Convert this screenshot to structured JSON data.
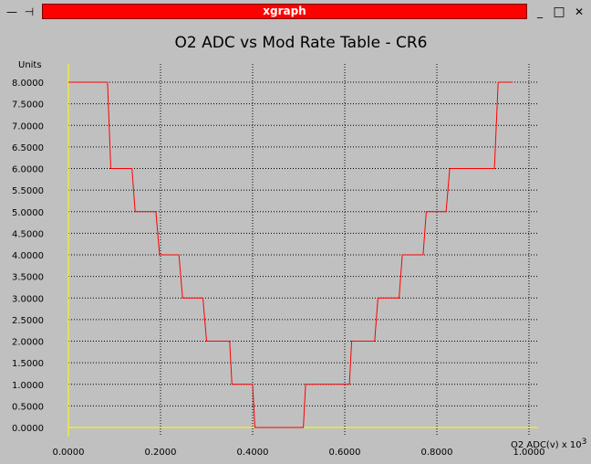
{
  "window": {
    "title": "xgraph",
    "menu_glyph": "—",
    "pin_glyph": "⊣",
    "controls": {
      "minimize": "_",
      "maximize": "□",
      "close": "✕"
    }
  },
  "colors": {
    "background": "#c0c0c0",
    "grid": "#000000",
    "axis": "#ffff00",
    "series": "#ff0000",
    "title_bar": "#ff0000"
  },
  "chart_data": {
    "type": "line",
    "title": "O2 ADC vs Mod Rate Table - CR6",
    "ylabel": "Units",
    "xlabel": "O2 ADC(v) x 10",
    "xlabel_exponent": "3",
    "xlim": [
      0,
      1.0
    ],
    "ylim": [
      0,
      8.0
    ],
    "grid": true,
    "x_ticks": [
      0.0,
      0.2,
      0.4,
      0.6,
      0.8,
      1.0
    ],
    "x_tick_labels": [
      "0.0000",
      "0.2000",
      "0.4000",
      "0.6000",
      "0.8000",
      "1.0000"
    ],
    "y_ticks": [
      0,
      0.5,
      1.0,
      1.5,
      2.0,
      2.5,
      3.0,
      3.5,
      4.0,
      4.5,
      5.0,
      5.5,
      6.0,
      6.5,
      7.0,
      7.5,
      8.0
    ],
    "y_tick_labels": [
      "0.0000",
      "0.5000",
      "1.0000",
      "1.5000",
      "2.0000",
      "2.5000",
      "3.0000",
      "3.5000",
      "4.0000",
      "4.5000",
      "5.0000",
      "5.5000",
      "6.0000",
      "6.5000",
      "7.0000",
      "7.5000",
      "8.0000"
    ],
    "series": [
      {
        "x": [
          0.0,
          0.085,
          0.092,
          0.138,
          0.145,
          0.19,
          0.198,
          0.24,
          0.248,
          0.292,
          0.3,
          0.35,
          0.355,
          0.4,
          0.405,
          0.51,
          0.515,
          0.61,
          0.615,
          0.665,
          0.672,
          0.718,
          0.725,
          0.77,
          0.777,
          0.82,
          0.828,
          0.925,
          0.933,
          0.965
        ],
        "y": [
          8,
          8,
          6,
          6,
          5,
          5,
          4,
          4,
          3,
          3,
          2,
          2,
          1,
          1,
          0,
          0,
          1,
          1,
          2,
          2,
          3,
          3,
          4,
          4,
          5,
          5,
          6,
          6,
          8,
          8
        ]
      }
    ]
  }
}
